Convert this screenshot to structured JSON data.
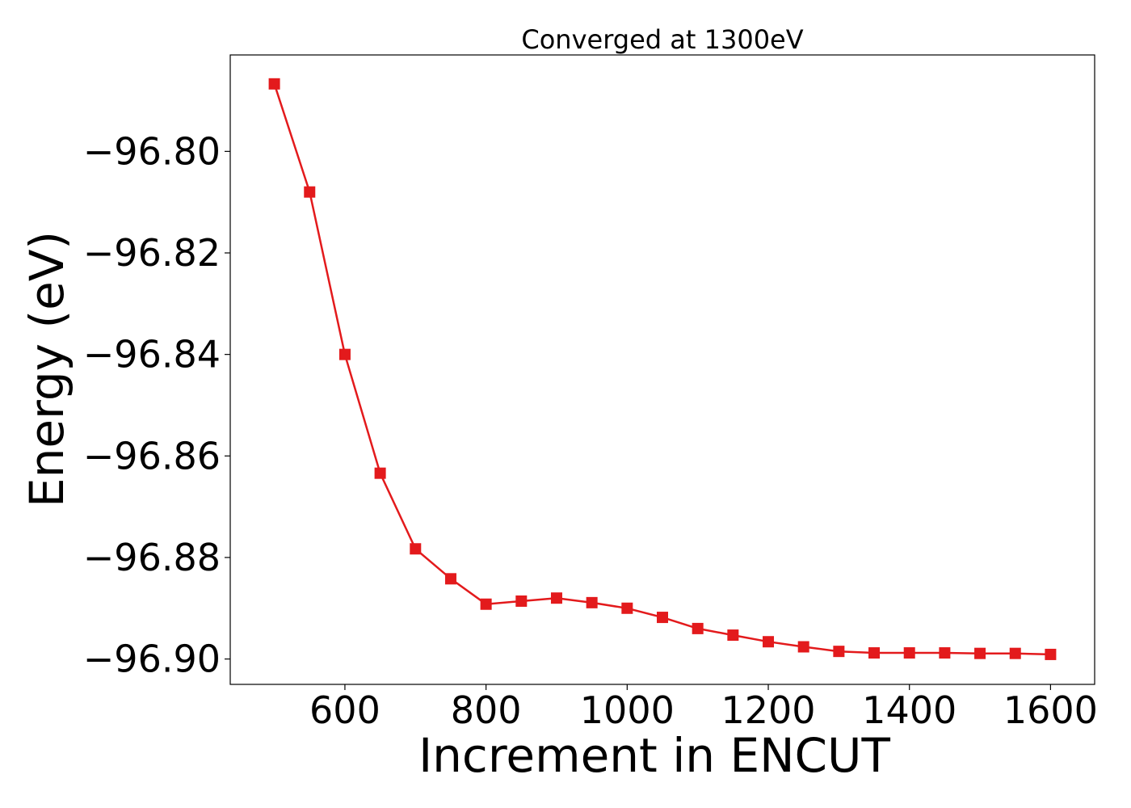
{
  "chart_data": {
    "type": "line",
    "title": "Converged at 1300eV",
    "xlabel": "Increment in ENCUT",
    "ylabel": "Energy (eV)",
    "xlim": [
      437.5,
      1662.5
    ],
    "ylim": [
      -96.905,
      -96.781
    ],
    "xticks": [
      600,
      800,
      1000,
      1200,
      1400,
      1600
    ],
    "xtick_labels": [
      "600",
      "800",
      "1000",
      "1200",
      "1400",
      "1600"
    ],
    "yticks": [
      -96.8,
      -96.82,
      -96.84,
      -96.86,
      -96.88,
      -96.9
    ],
    "ytick_labels": [
      "−96.80",
      "−96.82",
      "−96.84",
      "−96.86",
      "−96.88",
      "−96.90"
    ],
    "grid": false,
    "legend": "none",
    "marker": "square",
    "series": [
      {
        "color": "#e31a1c",
        "x": [
          500,
          550,
          600,
          650,
          700,
          750,
          800,
          850,
          900,
          950,
          1000,
          1050,
          1100,
          1150,
          1200,
          1250,
          1300,
          1350,
          1400,
          1450,
          1500,
          1550,
          1600
        ],
        "y": [
          -96.7867,
          -96.808,
          -96.84,
          -96.8634,
          -96.8783,
          -96.8842,
          -96.8892,
          -96.8886,
          -96.888,
          -96.8889,
          -96.89,
          -96.8918,
          -96.894,
          -96.8953,
          -96.8966,
          -96.8976,
          -96.8985,
          -96.8988,
          -96.8988,
          -96.8988,
          -96.8989,
          -96.8989,
          -96.8991
        ]
      }
    ]
  }
}
